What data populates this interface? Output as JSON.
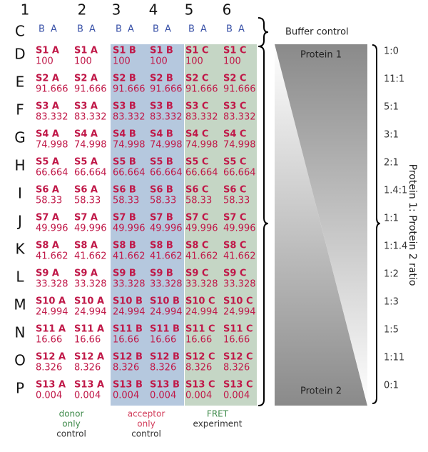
{
  "columns": [
    "1",
    "2",
    "3",
    "4",
    "5",
    "6"
  ],
  "buffer_row": {
    "letter": "C",
    "cells": [
      "B A",
      "B A",
      "B A",
      "B A",
      "B A",
      "B A"
    ],
    "label": "Buffer control"
  },
  "rows": [
    {
      "letter": "D",
      "ratio": "1:0",
      "cells": [
        [
          "S1 A",
          "100"
        ],
        [
          "S1 A",
          "100"
        ],
        [
          "S1 B",
          "100"
        ],
        [
          "S1 B",
          "100"
        ],
        [
          "S1 C",
          "100"
        ],
        [
          "S1 C",
          "100"
        ]
      ]
    },
    {
      "letter": "E",
      "ratio": "11:1",
      "cells": [
        [
          "S2 A",
          "91.666"
        ],
        [
          "S2 A",
          "91.666"
        ],
        [
          "S2 B",
          "91.666"
        ],
        [
          "S2 B",
          "91.666"
        ],
        [
          "S2 C",
          "91.666"
        ],
        [
          "S2 C",
          "91.666"
        ]
      ]
    },
    {
      "letter": "F",
      "ratio": "5:1",
      "cells": [
        [
          "S3 A",
          "83.332"
        ],
        [
          "S3 A",
          "83.332"
        ],
        [
          "S3 B",
          "83.332"
        ],
        [
          "S3 B",
          "83.332"
        ],
        [
          "S3 C",
          "83.332"
        ],
        [
          "S3 C",
          "83.332"
        ]
      ]
    },
    {
      "letter": "G",
      "ratio": "3:1",
      "cells": [
        [
          "S4 A",
          "74.998"
        ],
        [
          "S4 A",
          "74.998"
        ],
        [
          "S4 B",
          "74.998"
        ],
        [
          "S4 B",
          "74.998"
        ],
        [
          "S4 C",
          "74.998"
        ],
        [
          "S4 C",
          "74.998"
        ]
      ]
    },
    {
      "letter": "H",
      "ratio": "2:1",
      "cells": [
        [
          "S5 A",
          "66.664"
        ],
        [
          "S5 A",
          "66.664"
        ],
        [
          "S5 B",
          "66.664"
        ],
        [
          "S5 B",
          "66.664"
        ],
        [
          "S5 C",
          "66.664"
        ],
        [
          "S5 C",
          "66.664"
        ]
      ]
    },
    {
      "letter": "I",
      "ratio": "1.4:1",
      "cells": [
        [
          "S6 A",
          "58.33"
        ],
        [
          "S6 A",
          "58.33"
        ],
        [
          "S6 B",
          "58.33"
        ],
        [
          "S6 B",
          "58.33"
        ],
        [
          "S6 C",
          "58.33"
        ],
        [
          "S6 C",
          "58.33"
        ]
      ]
    },
    {
      "letter": "J",
      "ratio": "1:1",
      "cells": [
        [
          "S7 A",
          "49.996"
        ],
        [
          "S7 A",
          "49.996"
        ],
        [
          "S7 B",
          "49.996"
        ],
        [
          "S7 B",
          "49.996"
        ],
        [
          "S7 C",
          "49.996"
        ],
        [
          "S7 C",
          "49.996"
        ]
      ]
    },
    {
      "letter": "K",
      "ratio": "1:1.4",
      "cells": [
        [
          "S8 A",
          "41.662"
        ],
        [
          "S8 A",
          "41.662"
        ],
        [
          "S8 B",
          "41.662"
        ],
        [
          "S8 B",
          "41.662"
        ],
        [
          "S8 C",
          "41.662"
        ],
        [
          "S8 C",
          "41.662"
        ]
      ]
    },
    {
      "letter": "L",
      "ratio": "1:2",
      "cells": [
        [
          "S9 A",
          "33.328"
        ],
        [
          "S9 A",
          "33.328"
        ],
        [
          "S9 B",
          "33.328"
        ],
        [
          "S9 B",
          "33.328"
        ],
        [
          "S9 C",
          "33.328"
        ],
        [
          "S9 C",
          "33.328"
        ]
      ]
    },
    {
      "letter": "M",
      "ratio": "1:3",
      "cells": [
        [
          "S10 A",
          "24.994"
        ],
        [
          "S10 A",
          "24.994"
        ],
        [
          "S10 B",
          "24.994"
        ],
        [
          "S10 B",
          "24.994"
        ],
        [
          "S10 C",
          "24.994"
        ],
        [
          "S10 C",
          "24.994"
        ]
      ]
    },
    {
      "letter": "N",
      "ratio": "1:5",
      "cells": [
        [
          "S11 A",
          "16.66"
        ],
        [
          "S11 A",
          "16.66"
        ],
        [
          "S11 B",
          "16.66"
        ],
        [
          "S11 B",
          "16.66"
        ],
        [
          "S11 C",
          "16.66"
        ],
        [
          "S11 C",
          "16.66"
        ]
      ]
    },
    {
      "letter": "O",
      "ratio": "1:11",
      "cells": [
        [
          "S12 A",
          "8.326"
        ],
        [
          "S12 A",
          "8.326"
        ],
        [
          "S12 B",
          "8.326"
        ],
        [
          "S12 B",
          "8.326"
        ],
        [
          "S12 C",
          "8.326"
        ],
        [
          "S12 C",
          "8.326"
        ]
      ]
    },
    {
      "letter": "P",
      "ratio": "0:1",
      "cells": [
        [
          "S13 A",
          "0.004"
        ],
        [
          "S13 A",
          "0.004"
        ],
        [
          "S13 B",
          "0.004"
        ],
        [
          "S13 B",
          "0.004"
        ],
        [
          "S13 C",
          "0.004"
        ],
        [
          "S13 C",
          "0.004"
        ]
      ]
    }
  ],
  "groups": [
    {
      "lines": [
        "donor",
        "only",
        "control"
      ]
    },
    {
      "lines": [
        "acceptor",
        "only",
        "control"
      ]
    },
    {
      "lines": [
        "FRET",
        "experiment"
      ]
    }
  ],
  "gradient": {
    "top": "Protein 1",
    "bottom": "Protein 2"
  },
  "ratio_axis_label": "Protein 1: Protein 2 ratio"
}
